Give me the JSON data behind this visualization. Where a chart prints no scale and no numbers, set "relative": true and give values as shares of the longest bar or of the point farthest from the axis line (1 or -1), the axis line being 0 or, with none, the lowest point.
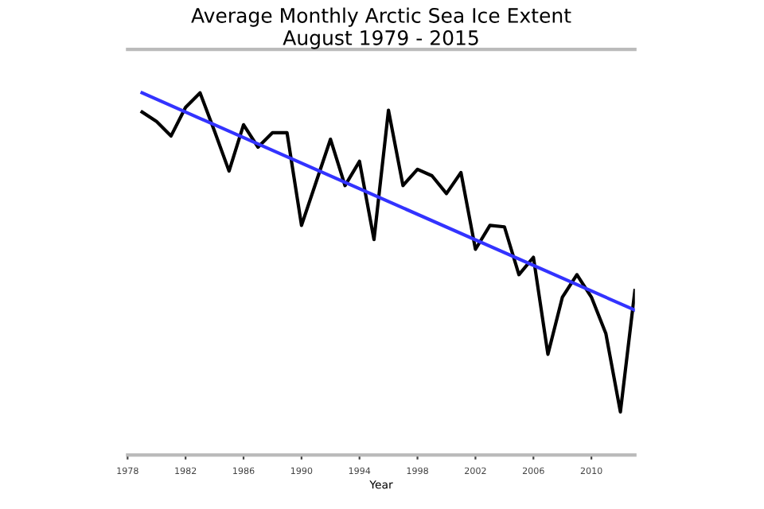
{
  "chart_data": {
    "type": "line",
    "title": "Average Monthly Arctic Sea Ice Extent\nAugust 1979 - 2015",
    "xlabel": "Year",
    "relative": true,
    "x": [
      1979,
      1980,
      1981,
      1982,
      1983,
      1984,
      1985,
      1986,
      1987,
      1988,
      1989,
      1990,
      1991,
      1992,
      1993,
      1994,
      1995,
      1996,
      1997,
      1998,
      1999,
      2000,
      2001,
      2002,
      2003,
      2004,
      2005,
      2006,
      2007,
      2008,
      2009,
      2010,
      2011,
      2012,
      2013
    ],
    "series": [
      {
        "color": "#000000",
        "values": [
          0.947,
          0.921,
          0.881,
          0.96,
          1.0,
          0.894,
          0.784,
          0.912,
          0.85,
          0.89,
          0.89,
          0.634,
          0.753,
          0.872,
          0.744,
          0.811,
          0.595,
          0.952,
          0.744,
          0.789,
          0.771,
          0.722,
          0.78,
          0.568,
          0.634,
          0.63,
          0.498,
          0.546,
          0.278,
          0.436,
          0.498,
          0.436,
          0.335,
          0.119,
          0.454
        ]
      },
      {
        "color": "#3333ff",
        "x": [
          1979,
          2013
        ],
        "values": [
          1.0,
          0.4
        ]
      }
    ],
    "xlim": [
      1978,
      2013
    ],
    "xticks": [
      1978,
      1982,
      1986,
      1990,
      1994,
      1998,
      2002,
      2006,
      2010
    ],
    "tick_labels": "x",
    "grid": false,
    "legend": false
  }
}
